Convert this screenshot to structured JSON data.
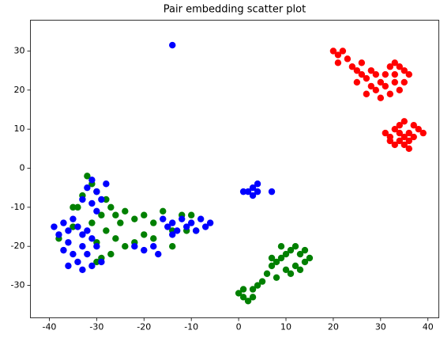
{
  "chart_data": {
    "type": "scatter",
    "title": "Pair embedding scatter plot",
    "xlim": [
      -44,
      42.3
    ],
    "ylim": [
      -38.3,
      37.9
    ],
    "xticks": [
      -40,
      -30,
      -20,
      -10,
      0,
      10,
      20,
      30,
      40
    ],
    "yticks": [
      -30,
      -20,
      -10,
      0,
      10,
      20,
      30
    ],
    "series": [
      {
        "color": "#ff0000",
        "x": [
          20,
          21,
          22,
          23,
          21,
          24,
          25,
          26,
          25,
          27,
          28,
          27,
          29,
          30,
          31,
          32,
          33,
          34,
          35,
          36,
          33,
          34,
          32,
          30,
          31,
          28,
          26,
          29,
          35,
          33,
          31,
          32,
          33,
          34,
          35,
          36,
          37,
          38,
          39,
          35,
          36,
          34,
          33,
          32,
          37,
          35,
          36,
          34
        ],
        "y": [
          30,
          29,
          30,
          28,
          27,
          26,
          25,
          24,
          22,
          23,
          21,
          19,
          20,
          22,
          24,
          26,
          27,
          26,
          25,
          24,
          22,
          20,
          19,
          18,
          21,
          25,
          27,
          24,
          22,
          24,
          9,
          8,
          10,
          11,
          12,
          9,
          8,
          10,
          9,
          6,
          5,
          7,
          6,
          7,
          11,
          8,
          7,
          9
        ]
      },
      {
        "color": "#008000",
        "x": [
          -32,
          -31,
          -30,
          -33,
          -34,
          -28,
          -27,
          -26,
          -29,
          -31,
          -25,
          -24,
          -22,
          -20,
          -18,
          -16,
          -12,
          -10,
          -11,
          -14,
          -18,
          -20,
          -22,
          -24,
          -26,
          -28,
          -30,
          -35,
          -38,
          -35,
          -27,
          -29,
          -30,
          -14,
          -9,
          0,
          1,
          2,
          3,
          4,
          5,
          3,
          1,
          6,
          7,
          8,
          9,
          10,
          11,
          12,
          13,
          14,
          15,
          12,
          10,
          8,
          11,
          13,
          9,
          14,
          7
        ],
        "y": [
          -2,
          -4,
          -6,
          -7,
          -10,
          -8,
          -10,
          -12,
          -12,
          -14,
          -14,
          -11,
          -13,
          -12,
          -14,
          -11,
          -12,
          -12,
          -16,
          -16,
          -18,
          -17,
          -19,
          -20,
          -18,
          -16,
          -19,
          -15,
          -18,
          -10,
          -22,
          -23,
          -24,
          -20,
          -16,
          -32,
          -33,
          -34,
          -31,
          -30,
          -29,
          -33,
          -31,
          -27,
          -25,
          -24,
          -23,
          -22,
          -21,
          -20,
          -22,
          -24,
          -23,
          -25,
          -26,
          -28,
          -27,
          -26,
          -20,
          -21,
          -23
        ]
      },
      {
        "color": "#0000ff",
        "x": [
          -14,
          -39,
          -37,
          -36,
          -35,
          -34,
          -33,
          -32,
          -31,
          -30,
          -32,
          -34,
          -36,
          -33,
          -31,
          -29,
          -37,
          -36,
          -38,
          -35,
          -33,
          -32,
          -31,
          -30,
          -29,
          -31,
          -30,
          -28,
          -33,
          -16,
          -15,
          -14,
          -13,
          -12,
          -11,
          -10,
          -9,
          -7,
          -6,
          -8,
          -14,
          -22,
          -20,
          -18,
          -17,
          3,
          4,
          2,
          3,
          1,
          4,
          7
        ],
        "y": [
          31.5,
          -15,
          -14,
          -16,
          -13,
          -15,
          -17,
          -16,
          -18,
          -20,
          -22,
          -24,
          -25,
          -26,
          -25,
          -24,
          -21,
          -19,
          -17,
          -22,
          -20,
          -5,
          -3,
          -6,
          -8,
          -9,
          -11,
          -4,
          -8,
          -13,
          -15,
          -14,
          -16,
          -13,
          -15,
          -14,
          -16,
          -15,
          -14,
          -13,
          -17,
          -20,
          -21,
          -20,
          -22,
          -5,
          -4,
          -6,
          -7,
          -6,
          -6,
          -6
        ]
      }
    ]
  }
}
